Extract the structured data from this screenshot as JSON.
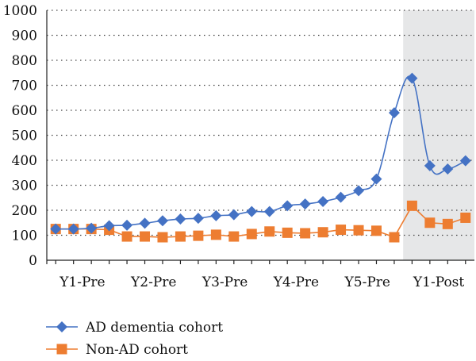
{
  "chart_data": {
    "type": "line",
    "title": "",
    "xlabel": "",
    "ylabel": "",
    "ylim": [
      0,
      1000
    ],
    "yticks": [
      0,
      100,
      200,
      300,
      400,
      500,
      600,
      700,
      800,
      900,
      1000
    ],
    "x_labels": [
      "Y1-Pre",
      "Y2-Pre",
      "Y3-Pre",
      "Y4-Pre",
      "Y5-Pre",
      "Y1-Post"
    ],
    "x_label_positions": [
      1.5,
      5.5,
      9.5,
      13.5,
      17.5,
      21.5
    ],
    "num_points": 24,
    "grid": {
      "horizontal": true,
      "style": "dotted"
    },
    "shaded_region": {
      "start_index": 20,
      "end_index": 23,
      "color": "#e6e7e8"
    },
    "legend_position": "bottom-left",
    "series": [
      {
        "name": "AD dementia cohort",
        "color": "#4472c4",
        "marker": "diamond",
        "smooth": true,
        "values": [
          125,
          125,
          128,
          138,
          140,
          148,
          158,
          165,
          168,
          178,
          182,
          195,
          195,
          218,
          225,
          235,
          252,
          278,
          325,
          590,
          728,
          378,
          365,
          398
        ]
      },
      {
        "name": "Non-AD cohort",
        "color": "#ed7d31",
        "marker": "square",
        "smooth": false,
        "values": [
          125,
          125,
          125,
          122,
          95,
          95,
          92,
          95,
          98,
          102,
          95,
          105,
          115,
          110,
          108,
          112,
          122,
          120,
          118,
          92,
          218,
          150,
          145,
          170
        ]
      }
    ]
  }
}
